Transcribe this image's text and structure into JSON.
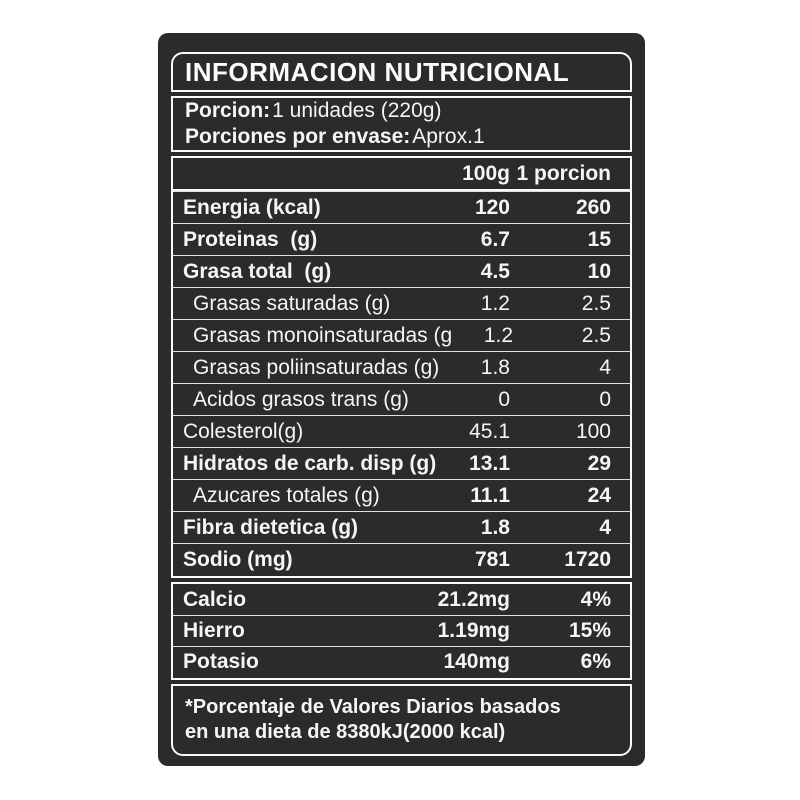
{
  "label": {
    "title": "INFORMACION NUTRICIONAL",
    "serving": {
      "porcion_label": "Porcion:",
      "porcion_value": "1 unidades (220g)",
      "envase_label": "Porciones por envase:",
      "envase_value": "Aprox.1"
    },
    "columns": {
      "col1": "100g",
      "col2": "1 porcion"
    },
    "rows": [
      {
        "name": "Energia (kcal)",
        "per100": "120",
        "perportion": "260"
      },
      {
        "name": "Proteinas  (g)",
        "per100": "6.7",
        "perportion": "15"
      },
      {
        "name": "Grasa total  (g)",
        "per100": "4.5",
        "perportion": "10"
      },
      {
        "name": "Grasas saturadas (g)",
        "per100": "1.2",
        "perportion": "2.5"
      },
      {
        "name": "Grasas monoinsaturadas (g)",
        "per100": "1.2",
        "perportion": "2.5"
      },
      {
        "name": "Grasas poliinsaturadas (g)",
        "per100": "1.8",
        "perportion": "4"
      },
      {
        "name": "Acidos grasos trans (g)",
        "per100": "0",
        "perportion": "0"
      },
      {
        "name": "Colesterol(g)",
        "per100": "45.1",
        "perportion": "100"
      },
      {
        "name": "Hidratos de carb. disp (g)",
        "per100": "13.1",
        "perportion": "29"
      },
      {
        "name": "Azucares totales (g)",
        "per100": "11.1",
        "perportion": "24"
      },
      {
        "name": "Fibra dietetica (g)",
        "per100": "1.8",
        "perportion": "4"
      },
      {
        "name": "Sodio (mg)",
        "per100": "781",
        "perportion": "1720"
      }
    ],
    "minerals": [
      {
        "name": "Calcio",
        "amount": "21.2mg",
        "daily_value": "4%"
      },
      {
        "name": "Hierro",
        "amount": "1.19mg",
        "daily_value": "15%"
      },
      {
        "name": "Potasio",
        "amount": "140mg",
        "daily_value": "6%"
      }
    ],
    "footnote": {
      "line1": "*Porcentaje de Valores Diarios basados",
      "line2": "en una dieta de 8380kJ(2000 kcal)"
    },
    "colors": {
      "card_background": "#2b2b2b",
      "text": "#f5f5f5",
      "border": "#fafafa",
      "page_background": "#ffffff"
    }
  }
}
